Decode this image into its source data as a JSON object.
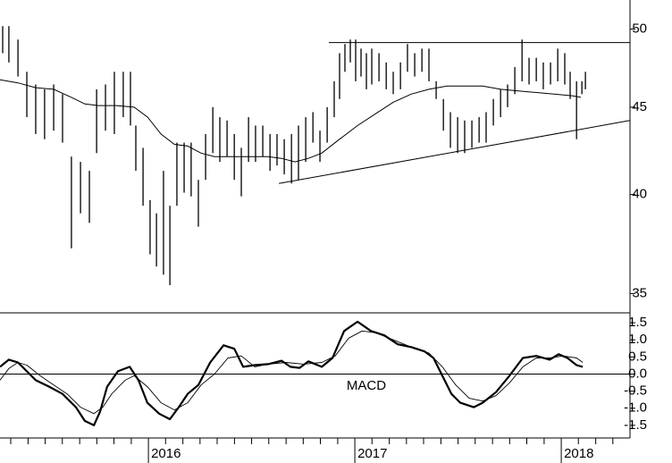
{
  "chart_data": [
    {
      "type": "range_bar",
      "yscale": "log",
      "color": "#000000",
      "xlim": [
        2015.281,
        2018.333
      ],
      "ylim": [
        34.1,
        52
      ],
      "yticks": [
        35,
        40,
        45,
        50
      ],
      "x": [
        2015.294,
        2015.324,
        2015.368,
        2015.411,
        2015.454,
        2015.497,
        2015.541,
        2015.584,
        2015.627,
        2015.671,
        2015.714,
        2015.749,
        2015.792,
        2015.835,
        2015.878,
        2015.913,
        2015.939,
        2015.974,
        2016.008,
        2016.039,
        2016.073,
        2016.104,
        2016.138,
        2016.173,
        2016.207,
        2016.242,
        2016.277,
        2016.312,
        2016.346,
        2016.381,
        2016.416,
        2016.45,
        2016.485,
        2016.519,
        2016.554,
        2016.589,
        2016.623,
        2016.658,
        2016.693,
        2016.727,
        2016.762,
        2016.797,
        2016.831,
        2016.866,
        2016.9,
        2016.926,
        2016.952,
        2016.978,
        2017.004,
        2017.03,
        2017.056,
        2017.082,
        2017.117,
        2017.152,
        2017.186,
        2017.221,
        2017.255,
        2017.29,
        2017.325,
        2017.359,
        2017.394,
        2017.429,
        2017.463,
        2017.498,
        2017.532,
        2017.567,
        2017.602,
        2017.636,
        2017.671,
        2017.706,
        2017.74,
        2017.775,
        2017.81,
        2017.844,
        2017.879,
        2017.913,
        2017.948,
        2017.983,
        2018.017,
        2018.043,
        2018.074,
        2018.1,
        2018.117
      ],
      "highs": [
        50.2,
        50.2,
        49.3,
        47.2,
        46.4,
        46.1,
        46.4,
        45.8,
        42.1,
        41.8,
        41.3,
        46.1,
        46.4,
        47.2,
        47.2,
        47.2,
        43.9,
        42.6,
        39.7,
        39.0,
        41.3,
        39.4,
        42.9,
        42.9,
        42.9,
        40.8,
        43.4,
        45.0,
        44.4,
        44.2,
        43.4,
        42.6,
        44.4,
        43.9,
        43.9,
        43.4,
        43.4,
        43.1,
        43.4,
        43.9,
        44.4,
        44.7,
        43.6,
        45.0,
        46.6,
        48.4,
        49.0,
        49.3,
        49.3,
        48.7,
        48.4,
        48.7,
        48.4,
        47.8,
        47.2,
        47.8,
        49.0,
        48.4,
        48.7,
        48.7,
        46.6,
        45.5,
        44.7,
        44.4,
        44.2,
        44.2,
        44.4,
        44.7,
        45.5,
        46.1,
        46.4,
        47.5,
        49.3,
        48.1,
        48.1,
        47.8,
        47.8,
        48.7,
        48.4,
        47.2,
        46.6,
        46.6,
        47.2
      ],
      "lows": [
        48.4,
        47.8,
        46.9,
        44.4,
        43.4,
        43.1,
        43.6,
        42.9,
        37.2,
        39.0,
        38.5,
        42.3,
        43.6,
        43.4,
        44.4,
        43.9,
        41.3,
        39.4,
        36.9,
        36.3,
        35.9,
        35.4,
        39.4,
        40.1,
        39.9,
        38.3,
        40.8,
        42.3,
        41.8,
        42.1,
        40.8,
        39.9,
        41.8,
        41.8,
        42.1,
        41.3,
        41.6,
        41.1,
        40.6,
        40.8,
        41.8,
        42.9,
        41.8,
        42.9,
        44.4,
        45.5,
        47.2,
        47.8,
        46.6,
        46.9,
        46.1,
        46.4,
        46.6,
        46.1,
        45.8,
        46.1,
        47.2,
        46.9,
        47.2,
        46.6,
        45.5,
        43.6,
        42.6,
        42.3,
        42.3,
        42.6,
        42.9,
        42.9,
        43.9,
        44.4,
        45.0,
        45.8,
        46.6,
        46.4,
        46.6,
        46.1,
        46.4,
        46.6,
        46.4,
        45.5,
        43.1,
        45.8,
        46.1
      ],
      "moving_average": {
        "color": "#000000",
        "x": [
          2015.281,
          2015.368,
          2015.454,
          2015.541,
          2015.627,
          2015.692,
          2015.757,
          2015.844,
          2015.931,
          2015.996,
          2016.061,
          2016.126,
          2016.19,
          2016.255,
          2016.32,
          2016.407,
          2016.494,
          2016.58,
          2016.645,
          2016.71,
          2016.775,
          2016.84,
          2016.926,
          2017.013,
          2017.1,
          2017.186,
          2017.273,
          2017.359,
          2017.446,
          2017.532,
          2017.619,
          2017.706,
          2017.792,
          2017.879,
          2017.965,
          2018.052,
          2018.095
        ],
        "values": [
          46.7,
          46.5,
          46.2,
          46.1,
          45.6,
          45.2,
          45.1,
          45.1,
          45.0,
          44.4,
          43.4,
          42.8,
          42.7,
          42.3,
          42.1,
          42.1,
          42.1,
          42.1,
          42.0,
          41.8,
          42.0,
          42.3,
          43.1,
          43.9,
          44.6,
          45.3,
          45.8,
          46.1,
          46.3,
          46.3,
          46.3,
          46.1,
          46.0,
          45.9,
          45.8,
          45.7,
          45.6
        ]
      },
      "trendlines": [
        {
          "x": [
            2016.874,
            2018.333
          ],
          "y": [
            49.1,
            49.1
          ]
        },
        {
          "x": [
            2016.632,
            2018.333
          ],
          "y": [
            40.6,
            44.2
          ]
        }
      ]
    },
    {
      "type": "line",
      "label": "MACD",
      "hlines": [
        0
      ],
      "xlim": [
        2015.281,
        2018.333
      ],
      "ylim": [
        -1.87,
        1.79
      ],
      "yticks": [
        1.5,
        {
          "value": 1,
          "label": "1.0"
        },
        0.5,
        {
          "value": 0,
          "label": "0.0"
        },
        -0.5,
        {
          "value": -1,
          "label": "-1.0"
        },
        -1.5
      ],
      "xticks": [
        2016,
        2017,
        2018
      ],
      "xminorticks": [
        2015.333,
        2015.417,
        2015.5,
        2015.583,
        2015.667,
        2015.75,
        2015.833,
        2015.917,
        2016.083,
        2016.167,
        2016.25,
        2016.333,
        2016.417,
        2016.5,
        2016.583,
        2016.667,
        2016.75,
        2016.833,
        2016.917,
        2017.083,
        2017.167,
        2017.25,
        2017.333,
        2017.417,
        2017.5,
        2017.583,
        2017.667,
        2017.75,
        2017.833,
        2017.917,
        2018.083,
        2018.167,
        2018.25
      ],
      "series": [
        {
          "color": "#000000",
          "width": 2.2,
          "x": [
            2015.281,
            2015.324,
            2015.368,
            2015.411,
            2015.454,
            2015.519,
            2015.584,
            2015.649,
            2015.692,
            2015.736,
            2015.766,
            2015.8,
            2015.852,
            2015.909,
            2015.952,
            2015.995,
            2016.052,
            2016.104,
            2016.147,
            2016.19,
            2016.242,
            2016.299,
            2016.364,
            2016.416,
            2016.459,
            2016.515,
            2016.58,
            2016.645,
            2016.688,
            2016.732,
            2016.775,
            2016.84,
            2016.892,
            2016.948,
            2017.013,
            2017.078,
            2017.143,
            2017.208,
            2017.273,
            2017.338,
            2017.381,
            2017.424,
            2017.468,
            2017.511,
            2017.576,
            2017.619,
            2017.684,
            2017.749,
            2017.814,
            2017.879,
            2017.944,
            2017.987,
            2018.03,
            2018.074,
            2018.104
          ],
          "values": [
            0.21,
            0.42,
            0.34,
            0.08,
            -0.18,
            -0.37,
            -0.58,
            -0.97,
            -1.37,
            -1.5,
            -1.1,
            -0.37,
            0.08,
            0.21,
            -0.18,
            -0.84,
            -1.16,
            -1.32,
            -0.97,
            -0.58,
            -0.32,
            0.34,
            0.84,
            0.74,
            0.21,
            0.26,
            0.29,
            0.39,
            0.21,
            0.18,
            0.37,
            0.21,
            0.47,
            1.26,
            1.53,
            1.26,
            1.13,
            0.87,
            0.79,
            0.66,
            0.47,
            -0.05,
            -0.58,
            -0.84,
            -0.97,
            -0.84,
            -0.53,
            -0.05,
            0.47,
            0.53,
            0.42,
            0.58,
            0.47,
            0.26,
            0.21
          ]
        },
        {
          "color": "#000000",
          "width": 0.9,
          "x": [
            2015.281,
            2015.324,
            2015.368,
            2015.411,
            2015.476,
            2015.541,
            2015.606,
            2015.671,
            2015.736,
            2015.779,
            2015.822,
            2015.887,
            2015.931,
            2015.995,
            2016.061,
            2016.126,
            2016.19,
            2016.255,
            2016.32,
            2016.385,
            2016.45,
            2016.515,
            2016.58,
            2016.667,
            2016.753,
            2016.84,
            2016.905,
            2016.97,
            2017.035,
            2017.1,
            2017.186,
            2017.273,
            2017.359,
            2017.424,
            2017.489,
            2017.554,
            2017.619,
            2017.684,
            2017.749,
            2017.814,
            2017.879,
            2017.944,
            2018.009,
            2018.074,
            2018.104
          ],
          "values": [
            -0.18,
            0.16,
            0.34,
            0.26,
            -0.05,
            -0.32,
            -0.58,
            -0.97,
            -1.16,
            -0.97,
            -0.58,
            -0.18,
            -0.05,
            -0.37,
            -0.84,
            -1.05,
            -0.84,
            -0.32,
            0.0,
            0.47,
            0.53,
            0.21,
            0.29,
            0.34,
            0.29,
            0.34,
            0.53,
            1.05,
            1.26,
            1.21,
            1.0,
            0.79,
            0.61,
            0.21,
            -0.32,
            -0.71,
            -0.79,
            -0.63,
            -0.26,
            0.21,
            0.47,
            0.47,
            0.53,
            0.47,
            0.34
          ]
        }
      ]
    }
  ]
}
